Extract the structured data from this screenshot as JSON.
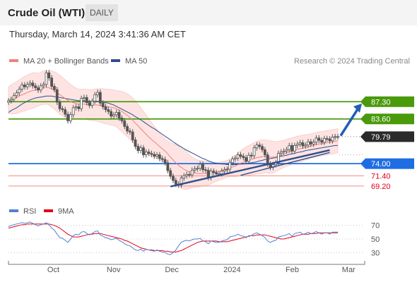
{
  "header": {
    "instrument": "Crude Oil (WTI)",
    "timeframe": "DAILY"
  },
  "datetime": "Thursday, March 14, 2024 3:41:36 AM CET",
  "credit": "Research © 2024 Trading Central",
  "colors": {
    "candle": "#555555",
    "ma20": "#f08080",
    "ma50": "#2e4f8c",
    "bollinger_fill": "#fde4e2",
    "resistance": "#4a9a0c",
    "support_blue": "#1f6de3",
    "support_red": "#f08a8a",
    "current": "#2b2b2b",
    "trendline": "#2e4f8c",
    "arrow": "#1f5fb5",
    "rsi": "#5580cc",
    "rsi_ma": "#e0001b"
  },
  "chart_data": [
    {
      "type": "candlestick",
      "legend": [
        {
          "name": "MA 20 + Bollinger Bands",
          "color": "#f08080"
        },
        {
          "name": "MA 50",
          "color": "#2e4f8c"
        }
      ],
      "x_ticks": [
        "Oct",
        "Nov",
        "Dec",
        "2024",
        "Feb",
        "Mar"
      ],
      "x_range": [
        "2023-09-13",
        "2024-03-14"
      ],
      "y_range": [
        66,
        94
      ],
      "current_price": "79.79",
      "levels": [
        {
          "label": "87.30",
          "value": 87.3,
          "kind": "resistance"
        },
        {
          "label": "83.60",
          "value": 83.6,
          "kind": "resistance"
        },
        {
          "label": "74.00",
          "value": 74.0,
          "kind": "support-primary"
        },
        {
          "label": "71.40",
          "value": 71.4,
          "kind": "support"
        },
        {
          "label": "69.20",
          "value": 69.2,
          "kind": "support"
        }
      ],
      "closes": [
        87.5,
        87.8,
        88.6,
        89.2,
        90.0,
        90.9,
        90.5,
        91.0,
        91.3,
        90.7,
        90.3,
        89.8,
        90.7,
        91.0,
        93.5,
        92.4,
        90.6,
        89.9,
        87.2,
        85.8,
        85.6,
        84.6,
        83.2,
        84.5,
        86.0,
        86.2,
        85.8,
        88.0,
        88.2,
        87.1,
        86.5,
        87.4,
        88.8,
        89.3,
        87.0,
        86.2,
        85.6,
        85.2,
        84.2,
        84.5,
        85.0,
        83.8,
        83.2,
        82.0,
        81.0,
        80.8,
        79.1,
        77.7,
        76.8,
        77.4,
        75.9,
        76.5,
        76.2,
        76.0,
        75.6,
        75.9,
        75.1,
        74.9,
        74.2,
        72.5,
        71.3,
        70.4,
        69.6,
        69.4,
        70.9,
        71.4,
        71.7,
        71.6,
        72.6,
        72.9,
        73.0,
        73.9,
        72.7,
        72.6,
        71.0,
        72.4,
        72.1,
        71.8,
        71.8,
        72.4,
        72.7,
        72.8,
        74.2,
        75.0,
        75.2,
        75.9,
        75.6,
        75.3,
        74.5,
        75.8,
        75.7,
        77.4,
        78.0,
        77.7,
        77.0,
        75.9,
        73.9,
        73.2,
        73.8,
        74.2,
        76.2,
        76.5,
        76.7,
        77.0,
        77.9,
        76.7,
        77.9,
        78.2,
        78.5,
        77.8,
        78.0,
        78.7,
        78.2,
        78.6,
        79.5,
        79.0,
        78.6,
        79.4,
        79.3,
        78.9,
        79.7,
        79.8,
        79.79
      ],
      "ma20": [
        87.6,
        87.8,
        88.0,
        88.2,
        88.5,
        88.8,
        89.0,
        89.3,
        89.5,
        89.7,
        89.8,
        89.9,
        90.1,
        90.3,
        90.4,
        90.3,
        90.0,
        89.7,
        89.3,
        88.8,
        88.4,
        88.0,
        87.6,
        87.3,
        87.1,
        86.9,
        86.8,
        86.8,
        86.8,
        86.7,
        86.6,
        86.6,
        86.6,
        86.6,
        86.5,
        86.4,
        86.3,
        86.2,
        86.1,
        86.0,
        85.8,
        85.5,
        85.2,
        84.8,
        84.4,
        83.9,
        83.3,
        82.7,
        82.1,
        81.5,
        80.9,
        80.3,
        79.7,
        79.2,
        78.7,
        78.2,
        77.7,
        77.2,
        76.7,
        76.1,
        75.4,
        74.8,
        74.2,
        73.6,
        73.2,
        72.8,
        72.5,
        72.3,
        72.1,
        72.0,
        71.9,
        71.9,
        71.9,
        71.9,
        71.9,
        72.0,
        72.1,
        72.2,
        72.4,
        72.5,
        72.7,
        72.9,
        73.1,
        73.3,
        73.5,
        73.8,
        74.1,
        74.3,
        74.5,
        74.7,
        74.9,
        75.1,
        75.3,
        75.4,
        75.5,
        75.6,
        75.5,
        75.4,
        75.4,
        75.5,
        75.7,
        75.9,
        76.1,
        76.3,
        76.5,
        76.7,
        76.9,
        77.1,
        77.2,
        77.3,
        77.5,
        77.6,
        77.8,
        77.9,
        78.1,
        78.2,
        78.3,
        78.4,
        78.5,
        78.6,
        78.7,
        78.8,
        78.9
      ],
      "bb_upper": [
        90.5,
        90.9,
        91.3,
        91.6,
        92.0,
        92.4,
        92.7,
        93.0,
        93.3,
        93.5,
        93.5,
        93.4,
        93.6,
        93.9,
        94.0,
        94.0,
        93.9,
        93.7,
        93.4,
        93.0,
        92.5,
        92.0,
        91.5,
        91.0,
        90.6,
        90.2,
        90.0,
        90.0,
        90.0,
        89.9,
        89.9,
        89.9,
        90.0,
        90.1,
        90.1,
        90.1,
        90.0,
        90.0,
        89.9,
        89.8,
        89.7,
        89.6,
        89.5,
        89.3,
        89.0,
        88.6,
        88.1,
        87.5,
        86.8,
        86.0,
        85.2,
        84.4,
        83.6,
        82.8,
        82.0,
        81.3,
        80.6,
        79.9,
        79.3,
        78.8,
        78.5,
        78.3,
        78.2,
        78.0,
        77.6,
        77.1,
        76.5,
        75.9,
        75.4,
        75.0,
        74.8,
        74.7,
        74.6,
        74.5,
        74.4,
        74.3,
        74.2,
        74.2,
        74.3,
        74.4,
        74.5,
        74.7,
        75.0,
        75.4,
        75.8,
        76.3,
        76.8,
        77.2,
        77.6,
        77.9,
        78.2,
        78.5,
        78.8,
        79.0,
        79.1,
        79.1,
        79.0,
        78.9,
        78.8,
        78.7,
        78.8,
        78.9,
        79.0,
        79.2,
        79.4,
        79.5,
        79.7,
        79.9,
        80.0,
        80.1,
        80.2,
        80.3,
        80.4,
        80.5,
        80.7,
        80.8,
        80.9,
        81.0,
        81.1,
        81.2,
        81.3,
        81.4,
        81.5
      ],
      "bb_lower": [
        84.7,
        84.7,
        84.7,
        84.8,
        85.0,
        85.2,
        85.3,
        85.6,
        85.7,
        85.9,
        86.1,
        86.4,
        86.6,
        86.7,
        86.8,
        86.6,
        86.1,
        85.7,
        85.2,
        84.6,
        84.3,
        84.0,
        83.7,
        83.6,
        83.6,
        83.6,
        83.6,
        83.6,
        83.6,
        83.5,
        83.3,
        83.3,
        83.2,
        83.1,
        82.9,
        82.7,
        82.6,
        82.4,
        82.3,
        82.2,
        81.9,
        81.4,
        80.9,
        80.3,
        79.8,
        79.2,
        78.5,
        77.9,
        77.4,
        77.0,
        76.6,
        76.2,
        75.8,
        75.6,
        75.4,
        75.1,
        74.8,
        74.5,
        74.1,
        73.4,
        72.3,
        71.3,
        70.2,
        69.2,
        68.8,
        68.5,
        68.5,
        68.7,
        68.8,
        69.0,
        69.0,
        69.1,
        69.2,
        69.3,
        69.4,
        69.7,
        70.0,
        70.2,
        70.5,
        70.6,
        70.9,
        71.1,
        71.2,
        71.2,
        71.2,
        71.3,
        71.4,
        71.4,
        71.4,
        71.5,
        71.6,
        71.7,
        71.8,
        71.8,
        71.9,
        72.1,
        72.0,
        71.9,
        72.0,
        72.3,
        72.6,
        72.9,
        73.2,
        73.4,
        73.6,
        73.9,
        74.1,
        74.3,
        74.4,
        74.5,
        74.8,
        74.9,
        75.2,
        75.3,
        75.5,
        75.6,
        75.7,
        75.8,
        75.9,
        76.0,
        76.1,
        76.2,
        76.3
      ],
      "ma50": [
        85.0,
        85.4,
        85.7,
        86.0,
        86.4,
        86.8,
        87.1,
        87.4,
        87.7,
        87.9,
        88.1,
        88.2,
        88.3,
        88.4,
        88.5,
        88.5,
        88.5,
        88.4,
        88.3,
        88.2,
        88.1,
        88.0,
        87.9,
        87.8,
        87.7,
        87.6,
        87.5,
        87.5,
        87.5,
        87.4,
        87.4,
        87.4,
        87.4,
        87.4,
        87.3,
        87.2,
        87.1,
        87.0,
        86.8,
        86.6,
        86.3,
        86.0,
        85.7,
        85.4,
        85.1,
        84.8,
        84.5,
        84.1,
        83.8,
        83.4,
        83.0,
        82.6,
        82.2,
        81.8,
        81.5,
        81.1,
        80.7,
        80.3,
        79.9,
        79.5,
        79.1,
        78.7,
        78.3,
        77.9,
        77.6,
        77.2,
        76.9,
        76.6,
        76.3,
        76.0,
        75.7,
        75.4,
        75.1,
        74.9,
        74.6,
        74.4,
        74.2,
        74.1,
        74.0,
        73.9,
        73.9,
        73.8,
        73.8,
        73.8,
        73.8,
        73.8,
        73.9,
        73.9,
        74.0,
        74.1,
        74.2,
        74.3,
        74.4,
        74.6,
        74.7,
        74.9,
        75.0,
        75.1,
        75.2,
        75.3,
        75.5,
        75.6,
        75.7,
        75.8,
        76.0,
        76.1,
        76.2,
        76.4,
        76.5,
        76.6,
        76.8,
        76.9,
        77.0,
        77.1,
        77.2,
        77.3,
        77.4,
        77.5,
        77.6,
        77.7,
        77.8,
        77.9,
        77.9
      ]
    },
    {
      "type": "line",
      "legend": [
        {
          "name": "RSI",
          "color": "#5580cc"
        },
        {
          "name": "9MA",
          "color": "#e0001b"
        }
      ],
      "y_ticks": [
        "70",
        "50",
        "30"
      ],
      "y_range": [
        20,
        80
      ],
      "rsi": [
        68,
        70,
        71,
        72,
        73,
        74,
        73,
        74,
        75,
        73,
        71,
        69,
        71,
        72,
        74,
        71,
        66,
        63,
        57,
        52,
        51,
        48,
        45,
        50,
        55,
        57,
        56,
        60,
        61,
        58,
        56,
        58,
        61,
        62,
        56,
        54,
        52,
        51,
        49,
        50,
        51,
        48,
        46,
        43,
        41,
        40,
        37,
        34,
        33,
        35,
        32,
        35,
        34,
        33,
        32,
        34,
        32,
        31,
        30,
        28,
        27,
        30,
        34,
        40,
        45,
        47,
        48,
        47,
        49,
        50,
        50,
        51,
        47,
        46,
        43,
        47,
        46,
        45,
        45,
        47,
        48,
        49,
        53,
        54,
        55,
        57,
        55,
        54,
        52,
        55,
        55,
        58,
        59,
        57,
        55,
        52,
        47,
        45,
        47,
        48,
        53,
        54,
        55,
        56,
        58,
        54,
        58,
        59,
        60,
        57,
        58,
        60,
        58,
        59,
        61,
        59,
        57,
        59,
        59,
        57,
        60,
        60,
        60
      ],
      "rsi_ma": [
        66,
        67,
        68,
        69,
        70,
        71,
        71,
        72,
        72,
        72,
        72,
        72,
        72,
        72,
        72,
        72,
        71,
        70,
        68,
        66,
        63,
        60,
        57,
        55,
        53,
        53,
        53,
        54,
        55,
        56,
        57,
        57,
        58,
        58,
        58,
        57,
        56,
        55,
        54,
        53,
        52,
        51,
        50,
        48,
        47,
        45,
        43,
        41,
        39,
        37,
        36,
        35,
        34,
        34,
        33,
        33,
        33,
        33,
        32,
        32,
        31,
        31,
        31,
        32,
        33,
        35,
        37,
        39,
        41,
        43,
        45,
        46,
        47,
        47,
        47,
        47,
        47,
        47,
        46,
        46,
        46,
        46,
        47,
        48,
        49,
        50,
        51,
        52,
        53,
        54,
        55,
        55,
        56,
        56,
        56,
        56,
        55,
        54,
        53,
        52,
        51,
        50,
        50,
        51,
        52,
        53,
        54,
        55,
        56,
        57,
        57,
        57,
        58,
        58,
        58,
        59,
        59,
        59,
        59,
        59,
        59,
        59,
        59
      ]
    }
  ]
}
